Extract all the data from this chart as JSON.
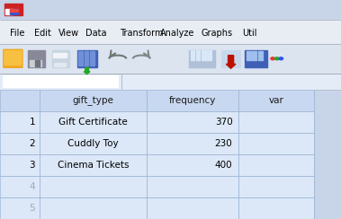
{
  "title_bar_color": "#c8d4e8",
  "menu_bar_color": "#e8edf4",
  "toolbar_color": "#dce4f0",
  "header_row_color": "#c8d8f0",
  "row_color_filled": "#dce8f8",
  "row_color_empty": "#dce8f8",
  "grid_line_color": "#a0b8d8",
  "text_color": "#000000",
  "dim_text_color": "#a0a8b8",
  "header_text_color": "#1a1a1a",
  "menu_items": [
    "File",
    "Edit",
    "View",
    "Data",
    "Transform",
    "Analyze",
    "Graphs",
    "Util"
  ],
  "col_headers": [
    "",
    "gift_type",
    "frequency",
    "var"
  ],
  "rows": [
    [
      "1",
      "Gift Certificate",
      "370",
      ""
    ],
    [
      "2",
      "Cuddly Toy",
      "230",
      ""
    ],
    [
      "3",
      "Cinema Tickets",
      "400",
      ""
    ],
    [
      "4",
      "",
      "",
      ""
    ],
    [
      "5",
      "",
      "",
      ""
    ]
  ],
  "figsize": [
    3.79,
    2.44
  ],
  "dpi": 100,
  "bg_color": "#c8d4e8"
}
